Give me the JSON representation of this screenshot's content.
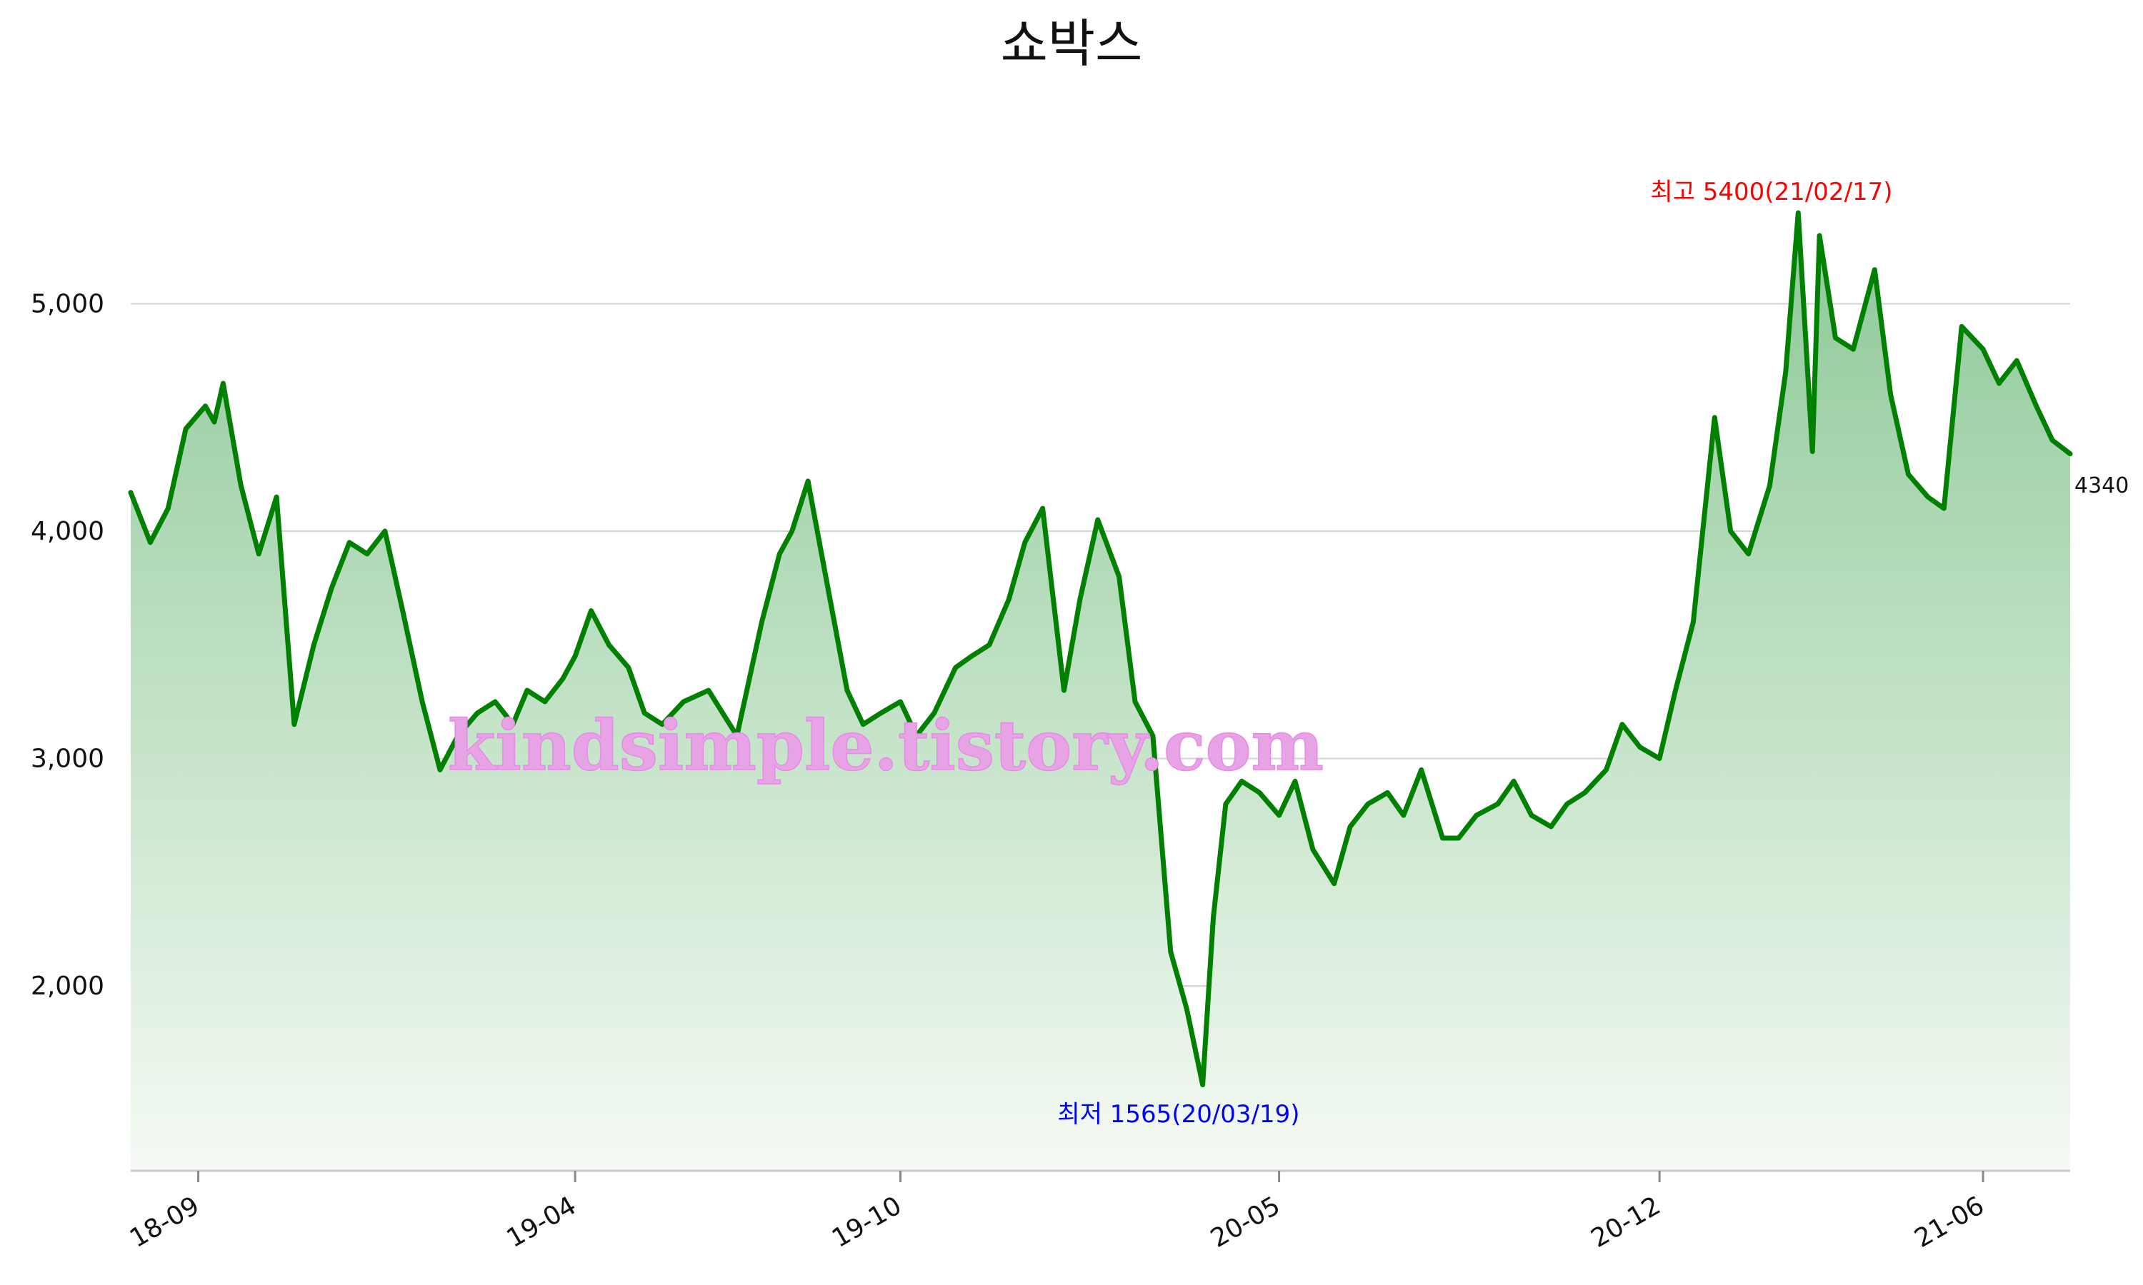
{
  "chart_data": {
    "type": "area",
    "title": "쇼박스",
    "xlabel": "",
    "ylabel": "",
    "x_ticks": [
      "18-09",
      "19-04",
      "19-10",
      "20-05",
      "20-12",
      "21-06"
    ],
    "y_ticks": [
      "2,000",
      "3,000",
      "4,000",
      "5,000"
    ],
    "ylim": [
      1200,
      5900
    ],
    "grid": "horizontal",
    "colors": {
      "line": "#008000",
      "fill_top": "#8cc896",
      "fill_bottom": "#f5faf4",
      "grid": "#d3d3d3"
    },
    "annotations": {
      "high": "최고 5400(21/02/17)",
      "low": "최저 1565(20/03/19)",
      "last": "4340"
    },
    "watermark": "kindsimple.tistory.com",
    "series": [
      {
        "x": [
          "2018-07-25",
          "2018-08-05",
          "2018-08-15",
          "2018-08-25",
          "2018-09-05",
          "2018-09-10",
          "2018-09-15",
          "2018-09-25",
          "2018-10-05",
          "2018-10-15",
          "2018-10-25",
          "2018-11-05",
          "2018-11-15",
          "2018-11-25",
          "2018-12-05",
          "2018-12-15",
          "2018-12-25",
          "2019-01-05",
          "2019-01-15",
          "2019-01-25",
          "2019-02-05",
          "2019-02-15",
          "2019-02-25",
          "2019-03-05",
          "2019-03-15",
          "2019-03-25",
          "2019-04-01",
          "2019-04-10",
          "2019-04-20",
          "2019-05-01",
          "2019-05-10",
          "2019-05-20",
          "2019-06-01",
          "2019-06-15",
          "2019-07-01",
          "2019-07-15",
          "2019-07-25",
          "2019-08-01",
          "2019-08-10",
          "2019-08-20",
          "2019-09-01",
          "2019-09-10",
          "2019-09-20",
          "2019-10-01",
          "2019-10-10",
          "2019-10-20",
          "2019-11-01",
          "2019-11-10",
          "2019-11-20",
          "2019-12-01",
          "2019-12-10",
          "2019-12-20",
          "2020-01-01",
          "2020-01-10",
          "2020-01-20",
          "2020-02-01",
          "2020-02-10",
          "2020-02-20",
          "2020-03-01",
          "2020-03-10",
          "2020-03-19",
          "2020-03-25",
          "2020-04-01",
          "2020-04-10",
          "2020-04-20",
          "2020-05-01",
          "2020-05-10",
          "2020-05-20",
          "2020-06-01",
          "2020-06-10",
          "2020-06-20",
          "2020-07-01",
          "2020-07-10",
          "2020-07-20",
          "2020-08-01",
          "2020-08-10",
          "2020-08-20",
          "2020-09-01",
          "2020-09-10",
          "2020-09-20",
          "2020-10-01",
          "2020-10-10",
          "2020-10-20",
          "2020-11-01",
          "2020-11-10",
          "2020-11-20",
          "2020-12-01",
          "2020-12-10",
          "2020-12-20",
          "2021-01-01",
          "2021-01-10",
          "2021-01-20",
          "2021-02-01",
          "2021-02-10",
          "2021-02-17",
          "2021-02-25",
          "2021-03-01",
          "2021-03-10",
          "2021-03-20",
          "2021-04-01",
          "2021-04-10",
          "2021-04-20",
          "2021-05-01",
          "2021-05-10",
          "2021-05-20",
          "2021-06-01",
          "2021-06-10",
          "2021-06-20",
          "2021-07-01",
          "2021-07-10",
          "2021-07-20"
        ],
        "y": [
          4170,
          3950,
          4100,
          4450,
          4550,
          4480,
          4650,
          4200,
          3900,
          4150,
          3150,
          3500,
          3750,
          3950,
          3900,
          4000,
          3650,
          3250,
          2950,
          3100,
          3200,
          3250,
          3150,
          3300,
          3250,
          3350,
          3450,
          3650,
          3500,
          3400,
          3200,
          3150,
          3250,
          3300,
          3100,
          3600,
          3900,
          4000,
          4220,
          3800,
          3300,
          3150,
          3200,
          3250,
          3100,
          3200,
          3400,
          3450,
          3500,
          3700,
          3950,
          4100,
          3300,
          3700,
          4050,
          3800,
          3250,
          3100,
          2150,
          1900,
          1565,
          2300,
          2800,
          2900,
          2850,
          2750,
          2900,
          2600,
          2450,
          2700,
          2800,
          2850,
          2750,
          2950,
          2650,
          2650,
          2750,
          2800,
          2900,
          2750,
          2700,
          2800,
          2850,
          2950,
          3150,
          3050,
          3000,
          3300,
          3600,
          4500,
          4000,
          3900,
          4200,
          4700,
          5400,
          4350,
          5300,
          4850,
          4800,
          5150,
          4600,
          4250,
          4150,
          4100,
          4900,
          4800,
          4650,
          4750,
          4550,
          4400,
          4340
        ]
      }
    ]
  }
}
